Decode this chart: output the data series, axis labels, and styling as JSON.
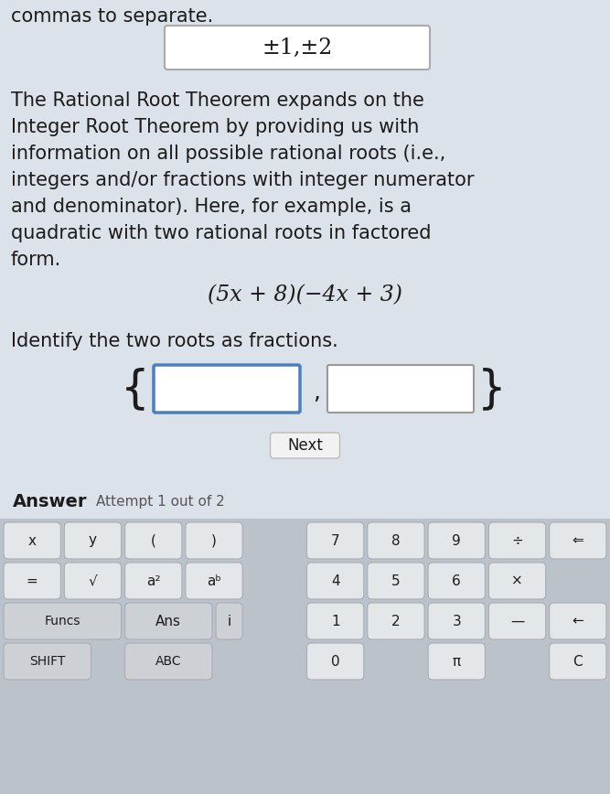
{
  "bg_color": "#dce2e9",
  "top_text": "commas to separate.",
  "answer_box_text": "±1,±2",
  "para_line1": "The Rational Root Theorem expands on the",
  "para_line2": "Integer Root Theorem by providing us with",
  "para_line3": "information on all possible rational roots (i.e.,",
  "para_line4": "integers and/or fractions with integer numerator",
  "para_line5": "and denominator). Here, for example, is a",
  "para_line6": "quadratic with two rational roots in factored",
  "para_line7": "form.",
  "formula": "(5x + 8)(−4x + 3)",
  "identify_text": "Identify the two roots as fractions.",
  "next_button": "Next",
  "answer_label": "Answer",
  "attempt_text": "Attempt 1 out of 2",
  "text_color": "#1c1c1c",
  "keyboard_bg": "#bcc2c9",
  "key_bg_light": "#e4e7ea",
  "key_bg_dark": "#cdd1d6",
  "input_box_blue": "#4a7fc1",
  "input_box_gray": "#999999",
  "answer_box_border": "#aaaaaa",
  "next_btn_bg": "#f2f2f2",
  "next_btn_border": "#bbbbbb",
  "white": "#ffffff",
  "font_size_main": 15,
  "font_size_formula": 17,
  "font_size_box": 17
}
